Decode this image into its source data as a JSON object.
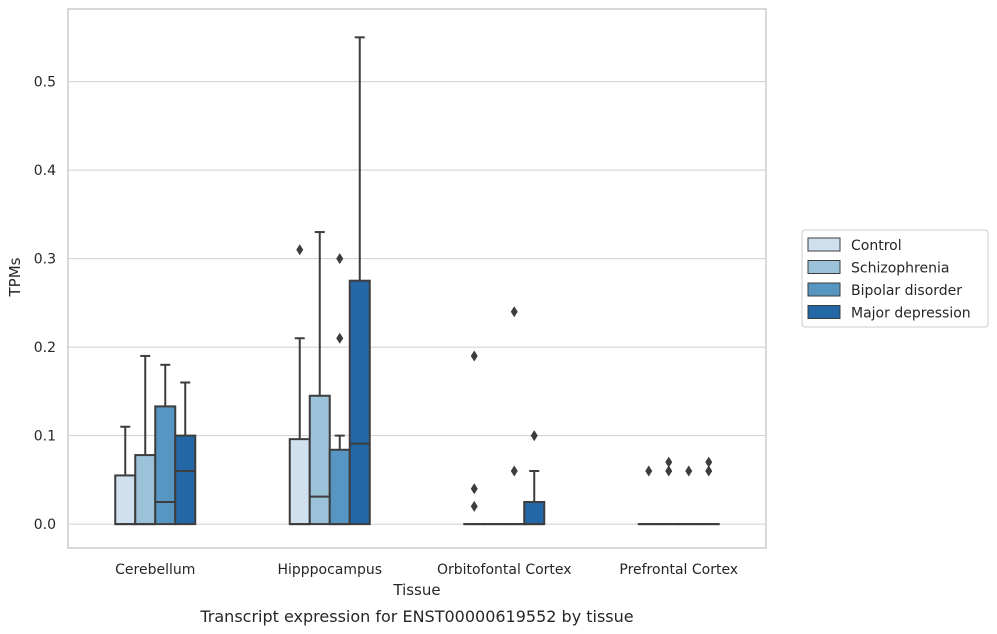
{
  "chart_data": {
    "type": "boxplot",
    "title": "",
    "caption": "Transcript expression for ENST00000619552 by tissue",
    "xlabel": "Tissue",
    "ylabel": "TPMs",
    "ylim": [
      -0.027,
      0.582
    ],
    "yticks": [
      0.0,
      0.1,
      0.2,
      0.3,
      0.4,
      0.5
    ],
    "ytick_labels": [
      "0.0",
      "0.1",
      "0.2",
      "0.3",
      "0.4",
      "0.5"
    ],
    "grid": "horizontal",
    "legend_position": "right, outside plot",
    "categories": [
      "Cerebellum",
      "Hipppocampus",
      "Orbitofontal Cortex",
      "Prefrontal Cortex"
    ],
    "series": [
      {
        "name": "Control",
        "color": "#d0e0ee",
        "boxes": [
          {
            "min": 0.0,
            "q1": 0.0,
            "median": 0.0,
            "q3": 0.055,
            "max": 0.11,
            "outliers": []
          },
          {
            "min": 0.0,
            "q1": 0.0,
            "median": 0.0,
            "q3": 0.096,
            "max": 0.21,
            "outliers": [
              0.31
            ]
          },
          {
            "min": 0.0,
            "q1": 0.0,
            "median": 0.0,
            "q3": 0.0,
            "max": 0.0,
            "outliers": [
              0.02,
              0.04,
              0.19
            ]
          },
          {
            "min": 0.0,
            "q1": 0.0,
            "median": 0.0,
            "q3": 0.0,
            "max": 0.0,
            "outliers": [
              0.06
            ]
          }
        ]
      },
      {
        "name": "Schizophrenia",
        "color": "#9cc2d9",
        "boxes": [
          {
            "min": 0.0,
            "q1": 0.0,
            "median": 0.0,
            "q3": 0.078,
            "max": 0.19,
            "outliers": []
          },
          {
            "min": 0.0,
            "q1": 0.0,
            "median": 0.031,
            "q3": 0.145,
            "max": 0.33,
            "outliers": []
          },
          {
            "min": 0.0,
            "q1": 0.0,
            "median": 0.0,
            "q3": 0.0,
            "max": 0.0,
            "outliers": []
          },
          {
            "min": 0.0,
            "q1": 0.0,
            "median": 0.0,
            "q3": 0.0,
            "max": 0.0,
            "outliers": [
              0.06,
              0.07
            ]
          }
        ]
      },
      {
        "name": "Bipolar disorder",
        "color": "#5796c2",
        "boxes": [
          {
            "min": 0.0,
            "q1": 0.0,
            "median": 0.025,
            "q3": 0.133,
            "max": 0.18,
            "outliers": []
          },
          {
            "min": 0.0,
            "q1": 0.0,
            "median": 0.0,
            "q3": 0.084,
            "max": 0.1,
            "outliers": [
              0.21,
              0.3
            ]
          },
          {
            "min": 0.0,
            "q1": 0.0,
            "median": 0.0,
            "q3": 0.0,
            "max": 0.0,
            "outliers": [
              0.06,
              0.24
            ]
          },
          {
            "min": 0.0,
            "q1": 0.0,
            "median": 0.0,
            "q3": 0.0,
            "max": 0.0,
            "outliers": [
              0.06
            ]
          }
        ]
      },
      {
        "name": "Major depression",
        "color": "#2467a6",
        "boxes": [
          {
            "min": 0.0,
            "q1": 0.0,
            "median": 0.06,
            "q3": 0.1,
            "max": 0.16,
            "outliers": []
          },
          {
            "min": 0.0,
            "q1": 0.0,
            "median": 0.091,
            "q3": 0.275,
            "max": 0.55,
            "outliers": []
          },
          {
            "min": 0.0,
            "q1": 0.0,
            "median": 0.0,
            "q3": 0.025,
            "max": 0.06,
            "outliers": [
              0.1
            ]
          },
          {
            "min": 0.0,
            "q1": 0.0,
            "median": 0.0,
            "q3": 0.0,
            "max": 0.0,
            "outliers": [
              0.06,
              0.07
            ]
          }
        ]
      }
    ]
  }
}
